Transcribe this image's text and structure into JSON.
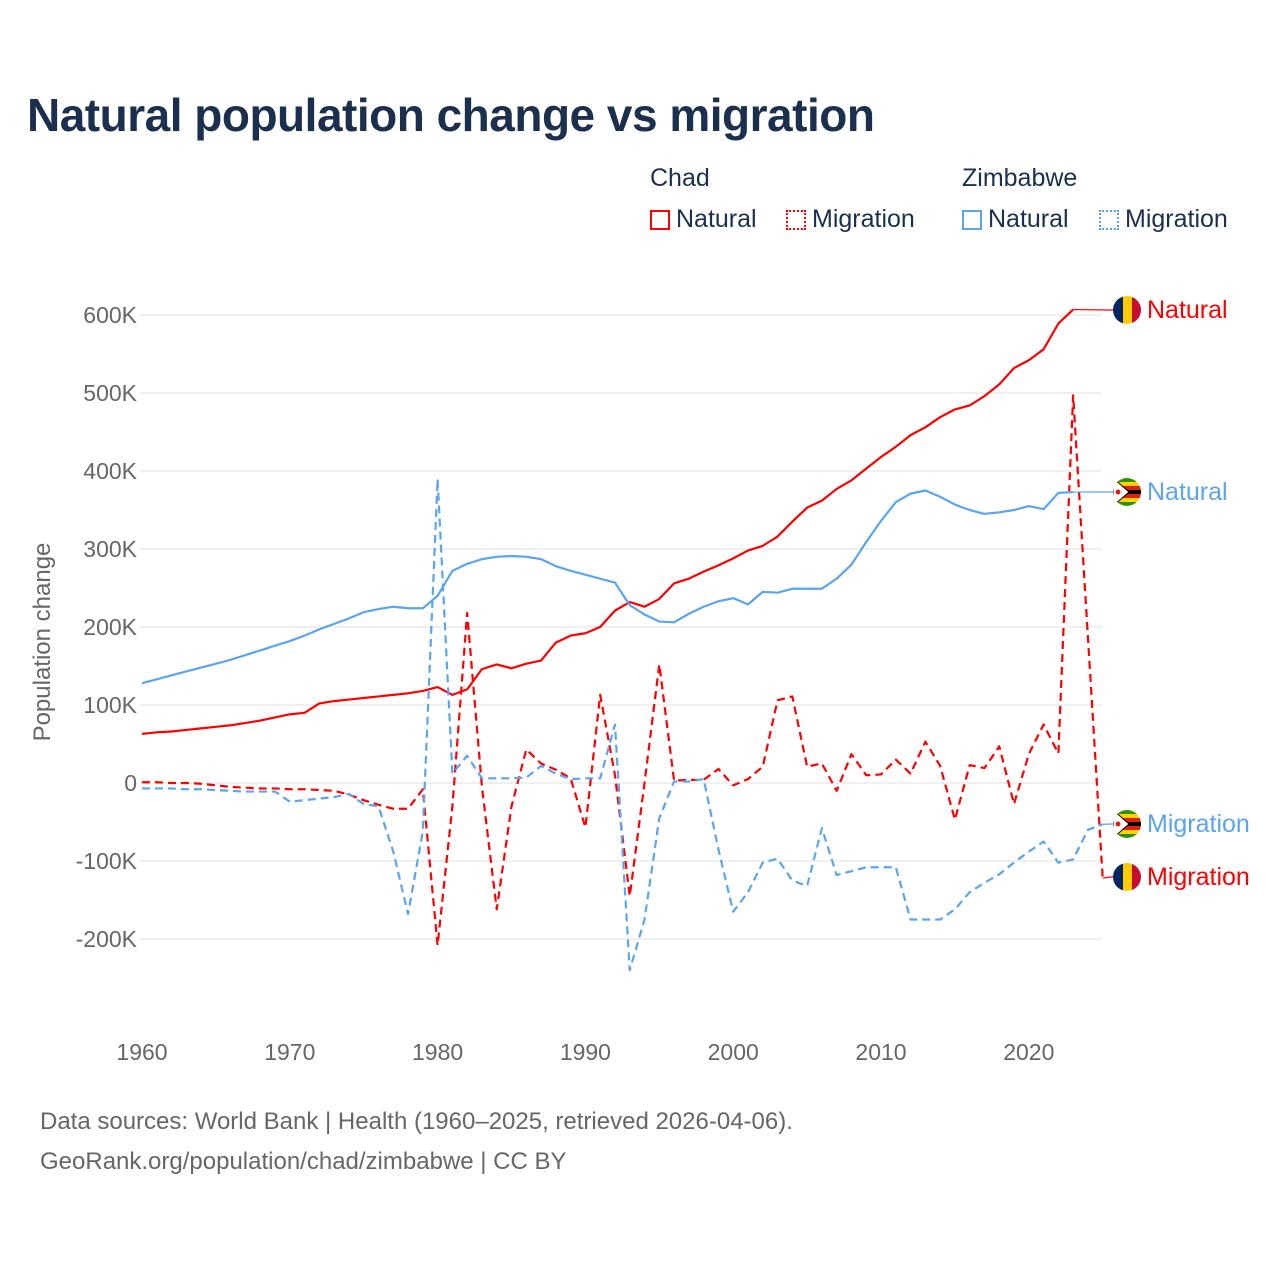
{
  "title": "Natural population change vs migration",
  "legend": {
    "groups": [
      {
        "name": "Chad",
        "color": "#ff0000",
        "items": [
          "Natural",
          "Migration"
        ]
      },
      {
        "name": "Zimbabwe",
        "color": "#5aa5ec",
        "items": [
          "Natural",
          "Migration"
        ]
      }
    ]
  },
  "footer": {
    "line1": "Data sources: World Bank | Health (1960–2025, retrieved 2026-04-06).",
    "line2": "GeoRank.org/population/chad/zimbabwe | CC BY"
  },
  "chart_data": {
    "type": "line",
    "title": "Natural population change vs migration",
    "xlabel": "",
    "ylabel": "Population change",
    "xlim": [
      1960,
      2025
    ],
    "ylim": [
      -260,
      620
    ],
    "x_ticks": [
      1960,
      1970,
      1980,
      1990,
      2000,
      2010,
      2020
    ],
    "y_ticks": [
      {
        "v": 600,
        "label": "600K"
      },
      {
        "v": 500,
        "label": "500K"
      },
      {
        "v": 400,
        "label": "400K"
      },
      {
        "v": 300,
        "label": "300K"
      },
      {
        "v": 200,
        "label": "200K"
      },
      {
        "v": 100,
        "label": "100K"
      },
      {
        "v": 0,
        "label": "0"
      },
      {
        "v": -100,
        "label": "-100K"
      },
      {
        "v": -200,
        "label": "-200K"
      }
    ],
    "units": "thousands",
    "grid": true,
    "legend_position": "top-right",
    "start_year": 1960,
    "series": [
      {
        "name": "Chad Natural",
        "country": "Chad",
        "kind": "Natural",
        "label": "Natural",
        "color": "#ff0000",
        "dash": false,
        "values": [
          63,
          65,
          66,
          68,
          70,
          72,
          74,
          77,
          80,
          84,
          88,
          90,
          102,
          105,
          107,
          109,
          111,
          113,
          115,
          118,
          123,
          113,
          120,
          146,
          152,
          147,
          153,
          157,
          180,
          189,
          192,
          200,
          221,
          232,
          226,
          236,
          256,
          262,
          271,
          279,
          288,
          298,
          304,
          316,
          335,
          353,
          362,
          377,
          388,
          403,
          418,
          431,
          446,
          456,
          469,
          479,
          484,
          496,
          511,
          532,
          542,
          556,
          589,
          607
        ]
      },
      {
        "name": "Chad Migration",
        "country": "Chad",
        "kind": "Migration",
        "label": "Migration",
        "color": "#ff0000",
        "dash": true,
        "values": [
          1,
          1,
          0,
          0,
          -1,
          -3,
          -5,
          -6,
          -7,
          -7,
          -8,
          -8,
          -9,
          -10,
          -15,
          -22,
          -28,
          -33,
          -33,
          -8,
          -208,
          -30,
          218,
          -5,
          -162,
          -30,
          43,
          25,
          17,
          6,
          -57,
          113,
          10,
          -145,
          0,
          152,
          3,
          4,
          4,
          18,
          -3,
          5,
          21,
          106,
          111,
          21,
          25,
          -10,
          37,
          10,
          11,
          30,
          12,
          53,
          22,
          -47,
          23,
          19,
          47,
          -27,
          37,
          75,
          38,
          497,
          187,
          -122
        ]
      },
      {
        "name": "Zimbabwe Natural",
        "country": "Zimbabwe",
        "kind": "Natural",
        "label": "Natural",
        "color": "#5aa5ec",
        "dash": false,
        "values": [
          128,
          133,
          138,
          143,
          148,
          153,
          158,
          164,
          170,
          176,
          182,
          189,
          197,
          204,
          211,
          219,
          223,
          226,
          224,
          224,
          240,
          272,
          281,
          287,
          290,
          291,
          290,
          287,
          278,
          272,
          267,
          262,
          257,
          228,
          216,
          207,
          206,
          217,
          226,
          233,
          237,
          229,
          245,
          244,
          249,
          249,
          249,
          262,
          280,
          309,
          336,
          360,
          371,
          375,
          367,
          357,
          350,
          345,
          347,
          350,
          355,
          351,
          372,
          373
        ]
      },
      {
        "name": "Zimbabwe Migration",
        "country": "Zimbabwe",
        "kind": "Migration",
        "label": "Migration",
        "color": "#5aa5ec",
        "dash": true,
        "values": [
          -7,
          -7,
          -7,
          -8,
          -8,
          -9,
          -10,
          -11,
          -11,
          -11,
          -24,
          -22,
          -20,
          -18,
          -14,
          -27,
          -30,
          -88,
          -168,
          -62,
          390,
          12,
          35,
          6,
          6,
          6,
          7,
          22,
          12,
          5,
          6,
          6,
          75,
          -240,
          -175,
          -45,
          2,
          2,
          5,
          -85,
          -165,
          -140,
          -102,
          -97,
          -125,
          -132,
          -58,
          -118,
          -113,
          -108,
          -108,
          -108,
          -175,
          -175,
          -175,
          -162,
          -140,
          -128,
          -117,
          -102,
          -88,
          -75,
          -102,
          -98,
          -60,
          -53
        ]
      }
    ]
  }
}
